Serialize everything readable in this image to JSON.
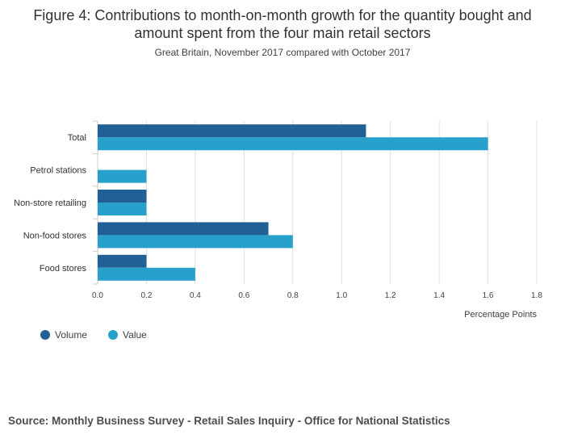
{
  "title": "Figure 4: Contributions to month-on-month growth for the quantity bought and amount spent from the four main retail sectors",
  "subtitle": "Great Britain, November 2017 compared with October 2017",
  "source": "Source: Monthly Business Survey - Retail Sales Inquiry - Office for National Statistics",
  "colors": {
    "volume": "#206095",
    "value": "#27a0cc",
    "grid": "#e0e0e0",
    "axis": "#cccccc"
  },
  "legend": [
    {
      "label": "Volume",
      "color": "#206095"
    },
    {
      "label": "Value",
      "color": "#27a0cc"
    }
  ],
  "chart_data": {
    "type": "bar",
    "orientation": "horizontal",
    "title": "Figure 4: Contributions to month-on-month growth for the quantity bought and amount spent from the four main retail sectors",
    "subtitle": "Great Britain, November 2017 compared with October 2017",
    "xlabel": "Percentage Points",
    "ylabel": "",
    "xlim": [
      0,
      1.8
    ],
    "xticks": [
      "0.0",
      "0.2",
      "0.4",
      "0.6",
      "0.8",
      "1.0",
      "1.2",
      "1.4",
      "1.6",
      "1.8"
    ],
    "categories": [
      "Total",
      "Petrol stations",
      "Non-store retailing",
      "Non-food stores",
      "Food stores"
    ],
    "series": [
      {
        "name": "Volume",
        "values": [
          1.1,
          0.0,
          0.2,
          0.7,
          0.2
        ]
      },
      {
        "name": "Value",
        "values": [
          1.6,
          0.2,
          0.2,
          0.8,
          0.4
        ]
      }
    ],
    "grid": true,
    "legend_position": "bottom-left"
  }
}
